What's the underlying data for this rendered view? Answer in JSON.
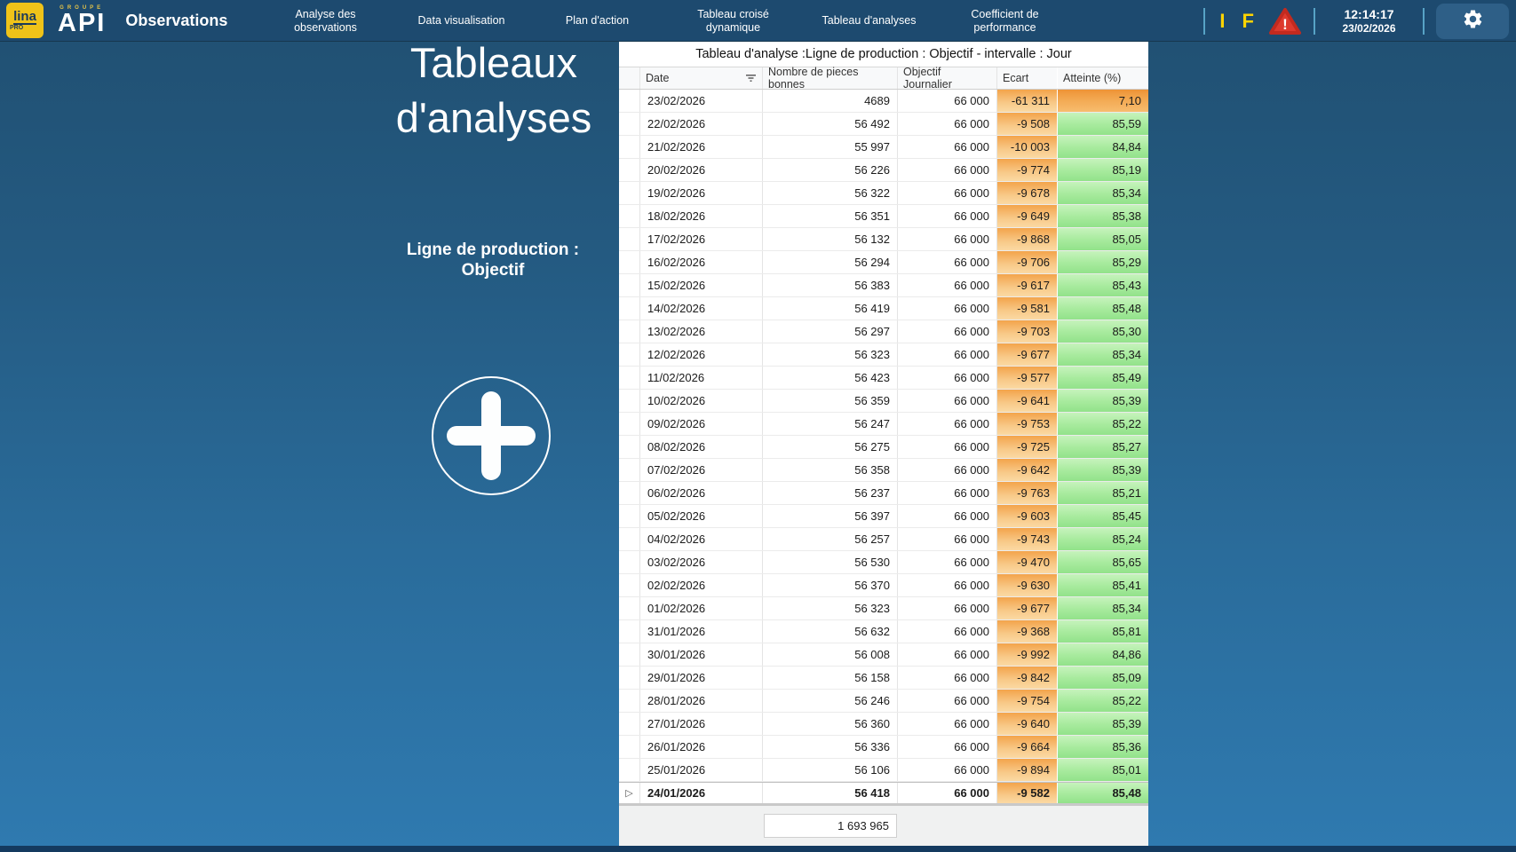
{
  "nav": {
    "logo_lina": "lina",
    "logo_lina_sub": "PRO",
    "logo_groupe": "Groupe",
    "logo_api": "API",
    "page_heading": "Observations",
    "items": [
      "Analyse des observations",
      "Data visualisation",
      "Plan d'action",
      "Tableau croisé dynamique",
      "Tableau d'analyses",
      "Coefficient de performance"
    ],
    "status_letter_i": "I",
    "status_letter_f": "F",
    "warning_exclamation": "!",
    "time": "12:14:17",
    "date": "23/02/2026"
  },
  "left_panel": {
    "title_line1": "Tableaux",
    "title_line2": "d'analyses",
    "subtitle_line1": "Ligne de production :",
    "subtitle_line2": "Objectif"
  },
  "table": {
    "title": "Tableau d'analyse :Ligne de production : Objectif - intervalle : Jour",
    "columns": [
      "Date",
      "Nombre de pieces bonnes",
      "Objectif Journalier",
      "Ecart",
      "Atteinte (%)"
    ],
    "focus_indicator": "▷",
    "rows": [
      {
        "date": "23/02/2026",
        "pieces": "4689",
        "objectif": "66 000",
        "ecart": "-61 311",
        "atteinte": "7,10",
        "atteinte_level": "low",
        "bold": false,
        "focused": false
      },
      {
        "date": "22/02/2026",
        "pieces": "56 492",
        "objectif": "66 000",
        "ecart": "-9 508",
        "atteinte": "85,59",
        "atteinte_level": "ok",
        "bold": false,
        "focused": false
      },
      {
        "date": "21/02/2026",
        "pieces": "55 997",
        "objectif": "66 000",
        "ecart": "-10 003",
        "atteinte": "84,84",
        "atteinte_level": "ok",
        "bold": false,
        "focused": false
      },
      {
        "date": "20/02/2026",
        "pieces": "56 226",
        "objectif": "66 000",
        "ecart": "-9 774",
        "atteinte": "85,19",
        "atteinte_level": "ok",
        "bold": false,
        "focused": false
      },
      {
        "date": "19/02/2026",
        "pieces": "56 322",
        "objectif": "66 000",
        "ecart": "-9 678",
        "atteinte": "85,34",
        "atteinte_level": "ok",
        "bold": false,
        "focused": false
      },
      {
        "date": "18/02/2026",
        "pieces": "56 351",
        "objectif": "66 000",
        "ecart": "-9 649",
        "atteinte": "85,38",
        "atteinte_level": "ok",
        "bold": false,
        "focused": false
      },
      {
        "date": "17/02/2026",
        "pieces": "56 132",
        "objectif": "66 000",
        "ecart": "-9 868",
        "atteinte": "85,05",
        "atteinte_level": "ok",
        "bold": false,
        "focused": false
      },
      {
        "date": "16/02/2026",
        "pieces": "56 294",
        "objectif": "66 000",
        "ecart": "-9 706",
        "atteinte": "85,29",
        "atteinte_level": "ok",
        "bold": false,
        "focused": false
      },
      {
        "date": "15/02/2026",
        "pieces": "56 383",
        "objectif": "66 000",
        "ecart": "-9 617",
        "atteinte": "85,43",
        "atteinte_level": "ok",
        "bold": false,
        "focused": false
      },
      {
        "date": "14/02/2026",
        "pieces": "56 419",
        "objectif": "66 000",
        "ecart": "-9 581",
        "atteinte": "85,48",
        "atteinte_level": "ok",
        "bold": false,
        "focused": false
      },
      {
        "date": "13/02/2026",
        "pieces": "56 297",
        "objectif": "66 000",
        "ecart": "-9 703",
        "atteinte": "85,30",
        "atteinte_level": "ok",
        "bold": false,
        "focused": false
      },
      {
        "date": "12/02/2026",
        "pieces": "56 323",
        "objectif": "66 000",
        "ecart": "-9 677",
        "atteinte": "85,34",
        "atteinte_level": "ok",
        "bold": false,
        "focused": false
      },
      {
        "date": "11/02/2026",
        "pieces": "56 423",
        "objectif": "66 000",
        "ecart": "-9 577",
        "atteinte": "85,49",
        "atteinte_level": "ok",
        "bold": false,
        "focused": false
      },
      {
        "date": "10/02/2026",
        "pieces": "56 359",
        "objectif": "66 000",
        "ecart": "-9 641",
        "atteinte": "85,39",
        "atteinte_level": "ok",
        "bold": false,
        "focused": false
      },
      {
        "date": "09/02/2026",
        "pieces": "56 247",
        "objectif": "66 000",
        "ecart": "-9 753",
        "atteinte": "85,22",
        "atteinte_level": "ok",
        "bold": false,
        "focused": false
      },
      {
        "date": "08/02/2026",
        "pieces": "56 275",
        "objectif": "66 000",
        "ecart": "-9 725",
        "atteinte": "85,27",
        "atteinte_level": "ok",
        "bold": false,
        "focused": false
      },
      {
        "date": "07/02/2026",
        "pieces": "56 358",
        "objectif": "66 000",
        "ecart": "-9 642",
        "atteinte": "85,39",
        "atteinte_level": "ok",
        "bold": false,
        "focused": false
      },
      {
        "date": "06/02/2026",
        "pieces": "56 237",
        "objectif": "66 000",
        "ecart": "-9 763",
        "atteinte": "85,21",
        "atteinte_level": "ok",
        "bold": false,
        "focused": false
      },
      {
        "date": "05/02/2026",
        "pieces": "56 397",
        "objectif": "66 000",
        "ecart": "-9 603",
        "atteinte": "85,45",
        "atteinte_level": "ok",
        "bold": false,
        "focused": false
      },
      {
        "date": "04/02/2026",
        "pieces": "56 257",
        "objectif": "66 000",
        "ecart": "-9 743",
        "atteinte": "85,24",
        "atteinte_level": "ok",
        "bold": false,
        "focused": false
      },
      {
        "date": "03/02/2026",
        "pieces": "56 530",
        "objectif": "66 000",
        "ecart": "-9 470",
        "atteinte": "85,65",
        "atteinte_level": "ok",
        "bold": false,
        "focused": false
      },
      {
        "date": "02/02/2026",
        "pieces": "56 370",
        "objectif": "66 000",
        "ecart": "-9 630",
        "atteinte": "85,41",
        "atteinte_level": "ok",
        "bold": false,
        "focused": false
      },
      {
        "date": "01/02/2026",
        "pieces": "56 323",
        "objectif": "66 000",
        "ecart": "-9 677",
        "atteinte": "85,34",
        "atteinte_level": "ok",
        "bold": false,
        "focused": false
      },
      {
        "date": "31/01/2026",
        "pieces": "56 632",
        "objectif": "66 000",
        "ecart": "-9 368",
        "atteinte": "85,81",
        "atteinte_level": "ok",
        "bold": false,
        "focused": false
      },
      {
        "date": "30/01/2026",
        "pieces": "56 008",
        "objectif": "66 000",
        "ecart": "-9 992",
        "atteinte": "84,86",
        "atteinte_level": "ok",
        "bold": false,
        "focused": false
      },
      {
        "date": "29/01/2026",
        "pieces": "56 158",
        "objectif": "66 000",
        "ecart": "-9 842",
        "atteinte": "85,09",
        "atteinte_level": "ok",
        "bold": false,
        "focused": false
      },
      {
        "date": "28/01/2026",
        "pieces": "56 246",
        "objectif": "66 000",
        "ecart": "-9 754",
        "atteinte": "85,22",
        "atteinte_level": "ok",
        "bold": false,
        "focused": false
      },
      {
        "date": "27/01/2026",
        "pieces": "56 360",
        "objectif": "66 000",
        "ecart": "-9 640",
        "atteinte": "85,39",
        "atteinte_level": "ok",
        "bold": false,
        "focused": false
      },
      {
        "date": "26/01/2026",
        "pieces": "56 336",
        "objectif": "66 000",
        "ecart": "-9 664",
        "atteinte": "85,36",
        "atteinte_level": "ok",
        "bold": false,
        "focused": false
      },
      {
        "date": "25/01/2026",
        "pieces": "56 106",
        "objectif": "66 000",
        "ecart": "-9 894",
        "atteinte": "85,01",
        "atteinte_level": "ok",
        "bold": false,
        "focused": false
      },
      {
        "date": "24/01/2026",
        "pieces": "56 418",
        "objectif": "66 000",
        "ecart": "-9 582",
        "atteinte": "85,48",
        "atteinte_level": "ok",
        "bold": true,
        "focused": true
      }
    ],
    "total": "1 693 965"
  },
  "colors": {
    "navbar": "#1d4a6f",
    "background_top": "#204f71",
    "background_bottom": "#2f7ab0",
    "logo_yellow": "#efc319",
    "status_yellow": "#ffd400",
    "warning_red": "#dd3a2e",
    "ecart_orange": "#f3a44b",
    "atteinte_green": "#92e28a",
    "atteinte_low_orange": "#ee9336"
  }
}
